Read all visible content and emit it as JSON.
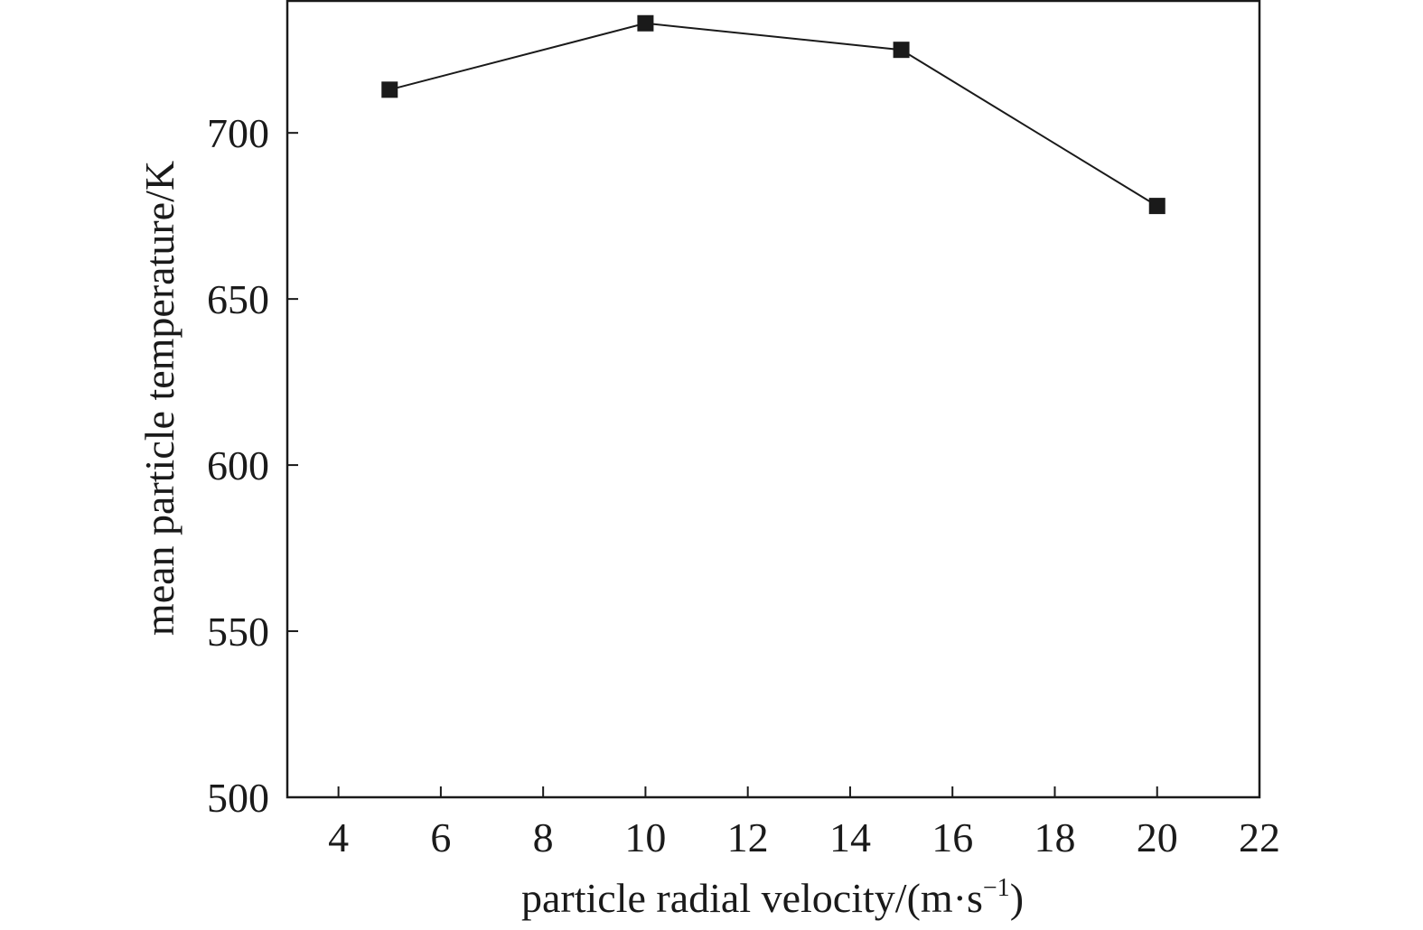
{
  "chart_data": {
    "type": "line",
    "title": "",
    "xlabel": "particle radial velocity/(m·s",
    "xlabel_sup": "−1",
    "xlabel_close": ")",
    "ylabel": "mean particle temperature/K",
    "xlim": [
      3,
      22
    ],
    "ylim": [
      500,
      740
    ],
    "xticks": [
      4,
      6,
      8,
      10,
      12,
      14,
      16,
      18,
      20,
      22
    ],
    "yticks": [
      500,
      550,
      600,
      650,
      700
    ],
    "grid": false,
    "series": [
      {
        "marker": "square",
        "color": "#1a1a1a",
        "x": [
          5,
          10,
          15,
          20
        ],
        "y": [
          713,
          733,
          725,
          678
        ]
      }
    ]
  }
}
